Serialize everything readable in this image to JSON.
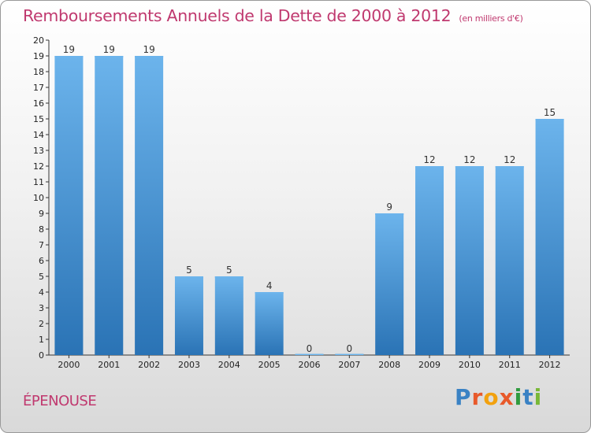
{
  "chart_data": {
    "type": "bar",
    "title": "Remboursements Annuels de la Dette de 2000 à 2012",
    "unit": "(en milliers d'€)",
    "categories": [
      "2000",
      "2001",
      "2002",
      "2003",
      "2004",
      "2005",
      "2006",
      "2007",
      "2008",
      "2009",
      "2010",
      "2011",
      "2012"
    ],
    "values": [
      19,
      19,
      19,
      5,
      5,
      4,
      0,
      0,
      9,
      12,
      12,
      12,
      15
    ],
    "ylim": [
      0,
      20
    ],
    "yticks": [
      0,
      1,
      2,
      3,
      4,
      5,
      6,
      7,
      8,
      9,
      10,
      11,
      12,
      13,
      14,
      15,
      16,
      17,
      18,
      19,
      20
    ],
    "grid": false,
    "colors": {
      "bar": "#4a9ad8",
      "bar_light": "#6cb4ec",
      "bar_dark": "#2a73b5",
      "title": "#c0396f"
    }
  },
  "commune": "ÉPENOUSE",
  "logo": {
    "letters": [
      "P",
      "r",
      "o",
      "x",
      "i",
      "t",
      "i"
    ]
  }
}
